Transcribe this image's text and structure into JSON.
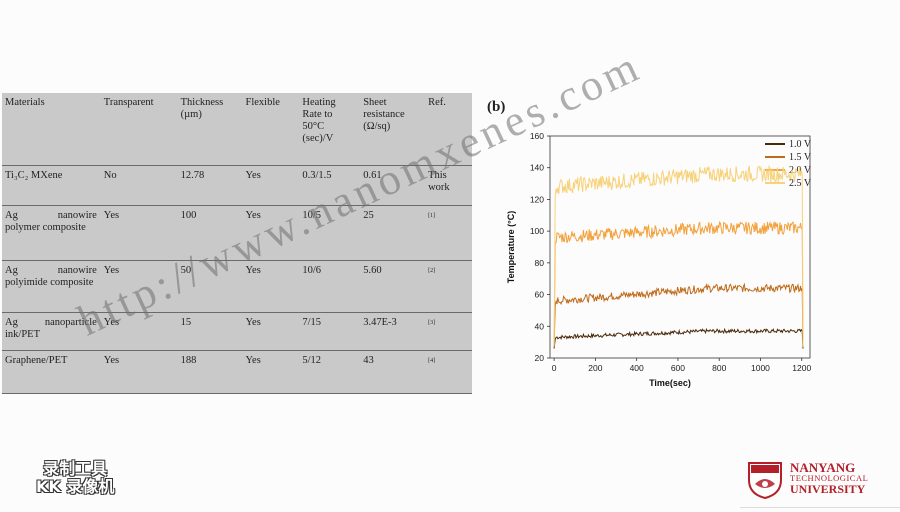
{
  "table": {
    "headers": [
      "Materials",
      "Transparent",
      "Thickness (µm)",
      "Flexible",
      "Heating Rate to 50°C (sec)/V",
      "Sheet resistance (Ω/sq)",
      "Ref."
    ],
    "rows": [
      [
        "Ti₃C₂ MXene",
        "No",
        "12.78",
        "Yes",
        "0.3/1.5",
        "0.61",
        "This work"
      ],
      [
        "Ag nanowire polymer composite",
        "Yes",
        "100",
        "Yes",
        "10/5",
        "25",
        "[1]"
      ],
      [
        "Ag nanowire polyimide composite",
        "Yes",
        "50",
        "Yes",
        "10/6",
        "5.60",
        "[2]"
      ],
      [
        "Ag nanoparticle ink/PET",
        "Yes",
        "15",
        "Yes",
        "7/15",
        "3.47E-3",
        "[3]"
      ],
      [
        "Graphene/PET",
        "Yes",
        "188",
        "Yes",
        "5/12",
        "43",
        "[4]"
      ]
    ]
  },
  "chart": {
    "panel_label": "(b)"
  },
  "chart_data": {
    "type": "line",
    "xlabel": "Time(sec)",
    "ylabel": "Temperature (°C)",
    "xlim": [
      -20,
      1240
    ],
    "ylim": [
      20,
      160
    ],
    "xticks": [
      0,
      200,
      400,
      600,
      800,
      1000,
      1200
    ],
    "yticks": [
      20,
      40,
      60,
      80,
      100,
      120,
      140,
      160
    ],
    "legend_position": "top-right",
    "series": [
      {
        "name": "1.0 V",
        "color": "#4a2a0a",
        "start": 26,
        "plateau_start": 33,
        "plateau_end": 37,
        "noise": 1.2
      },
      {
        "name": "1.5 V",
        "color": "#c06a1a",
        "start": 27,
        "plateau_start": 56,
        "plateau_end": 64,
        "noise": 2.5
      },
      {
        "name": "2.0 V",
        "color": "#f2a13c",
        "start": 27,
        "plateau_start": 96,
        "plateau_end": 102,
        "noise": 4
      },
      {
        "name": "2.5 V",
        "color": "#f7d27a",
        "start": 28,
        "plateau_start": 128,
        "plateau_end": 136,
        "noise": 5
      }
    ],
    "x_on": 0,
    "x_off": 1200
  },
  "watermark": "http://www.nanomxenes.com",
  "recorder_logo": [
    "录制工具",
    "KK 录像机"
  ],
  "university": {
    "line1": "NANYANG",
    "line2": "TECHNOLOGICAL",
    "line3": "UNIVERSITY",
    "color": "#b3202a"
  }
}
